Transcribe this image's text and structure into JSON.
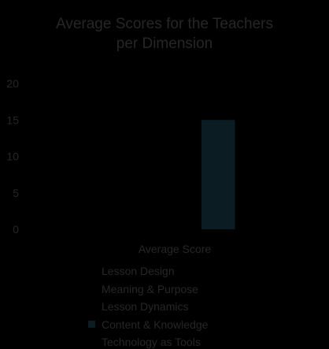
{
  "chart_data": {
    "type": "bar",
    "title_lines": [
      "Average Scores for the Teachers",
      "per Dimension"
    ],
    "categories": [
      "Average Score"
    ],
    "xlabel": "Average Score",
    "ylabel": "",
    "ylim": [
      0,
      20
    ],
    "yticks": [
      0,
      5,
      10,
      15,
      20
    ],
    "grid": false,
    "legend_position": "bottom",
    "series": [
      {
        "name": "Lesson Design",
        "values": [
          0
        ],
        "color": "#000000"
      },
      {
        "name": "Meaning & Purpose",
        "values": [
          0
        ],
        "color": "#000000"
      },
      {
        "name": "Lesson Dynamics",
        "values": [
          0
        ],
        "color": "#000000"
      },
      {
        "name": "Content & Knowledge",
        "values": [
          15
        ],
        "color": "#0b1d22"
      },
      {
        "name": "Technology as Tools",
        "values": [
          0
        ],
        "color": "#000000"
      }
    ]
  }
}
